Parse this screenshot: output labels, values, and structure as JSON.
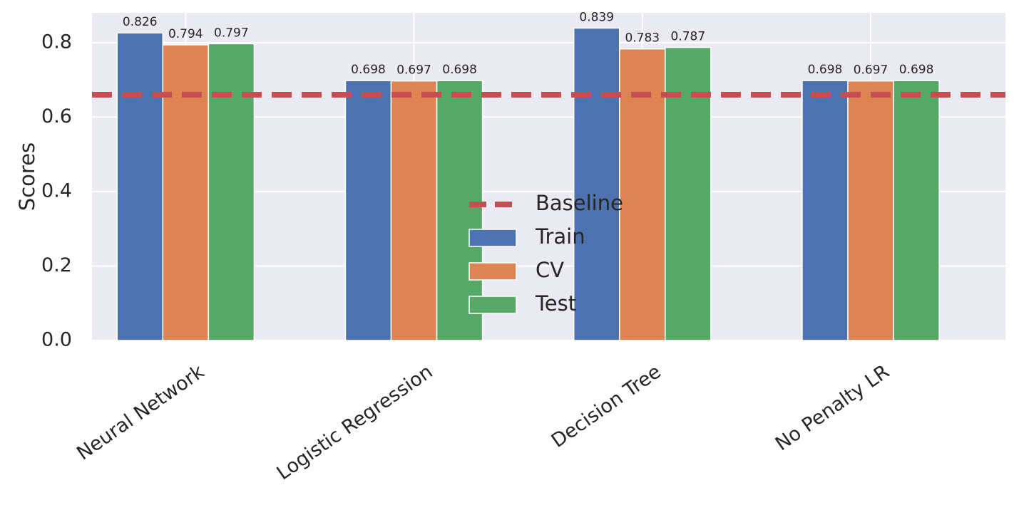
{
  "chart_data": {
    "type": "bar",
    "categories": [
      "Neural Network",
      "Logistic Regression",
      "Decision Tree",
      "No Penalty LR"
    ],
    "series": [
      {
        "name": "Train",
        "color": "#4C72B0",
        "values": [
          0.826,
          0.698,
          0.839,
          0.698
        ],
        "labels": [
          "0.826",
          "0.698",
          "0.839",
          "0.698"
        ]
      },
      {
        "name": "CV",
        "color": "#DD8452",
        "values": [
          0.794,
          0.697,
          0.783,
          0.697
        ],
        "labels": [
          "0.794",
          "0.697",
          "0.783",
          "0.697"
        ]
      },
      {
        "name": "Test",
        "color": "#55A868",
        "values": [
          0.797,
          0.698,
          0.787,
          0.698
        ],
        "labels": [
          "0.797",
          "0.698",
          "0.787",
          "0.698"
        ]
      }
    ],
    "baseline": {
      "name": "Baseline",
      "value": 0.66,
      "color": "#C44E52",
      "style": "dashed"
    },
    "xlabel": "",
    "ylabel": "Scores",
    "ylim": [
      0,
      0.88
    ],
    "yticks": [
      0.0,
      0.2,
      0.4,
      0.6,
      0.8
    ],
    "ytick_labels": [
      "0.0",
      "0.2",
      "0.4",
      "0.6",
      "0.8"
    ],
    "grid": true,
    "legend_position": "center",
    "background": "#EAEAF2"
  }
}
